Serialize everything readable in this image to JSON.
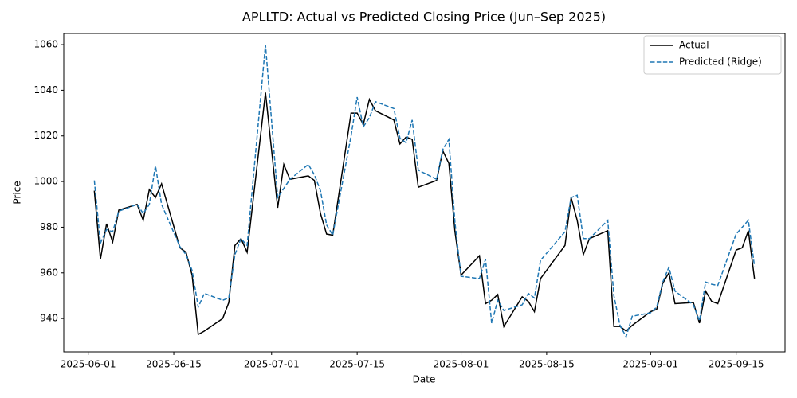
{
  "chart_data": {
    "type": "line",
    "title": "APLLTD: Actual vs Predicted Closing Price (Jun–Sep 2025)",
    "xlabel": "Date",
    "ylabel": "Price",
    "x": [
      "2025-06-02",
      "2025-06-03",
      "2025-06-04",
      "2025-06-05",
      "2025-06-06",
      "2025-06-09",
      "2025-06-10",
      "2025-06-11",
      "2025-06-12",
      "2025-06-13",
      "2025-06-16",
      "2025-06-17",
      "2025-06-18",
      "2025-06-19",
      "2025-06-20",
      "2025-06-23",
      "2025-06-24",
      "2025-06-25",
      "2025-06-26",
      "2025-06-27",
      "2025-06-30",
      "2025-07-02",
      "2025-07-03",
      "2025-07-04",
      "2025-07-07",
      "2025-07-08",
      "2025-07-09",
      "2025-07-10",
      "2025-07-11",
      "2025-07-14",
      "2025-07-15",
      "2025-07-16",
      "2025-07-17",
      "2025-07-18",
      "2025-07-21",
      "2025-07-22",
      "2025-07-23",
      "2025-07-24",
      "2025-07-25",
      "2025-07-28",
      "2025-07-29",
      "2025-07-30",
      "2025-07-31",
      "2025-08-01",
      "2025-08-04",
      "2025-08-05",
      "2025-08-06",
      "2025-08-07",
      "2025-08-08",
      "2025-08-11",
      "2025-08-12",
      "2025-08-13",
      "2025-08-14",
      "2025-08-18",
      "2025-08-19",
      "2025-08-20",
      "2025-08-21",
      "2025-08-22",
      "2025-08-25",
      "2025-08-26",
      "2025-08-27",
      "2025-08-28",
      "2025-08-29",
      "2025-09-01",
      "2025-09-02",
      "2025-09-03",
      "2025-09-04",
      "2025-09-05",
      "2025-09-08",
      "2025-09-09",
      "2025-09-10",
      "2025-09-11",
      "2025-09-12",
      "2025-09-15",
      "2025-09-16",
      "2025-09-17",
      "2025-09-18"
    ],
    "series": [
      {
        "name": "Actual",
        "color": "#000000",
        "dash": false,
        "values": [
          996,
          966,
          981.5,
          973.5,
          987.5,
          990,
          983,
          996.5,
          993,
          999,
          971,
          969,
          959,
          933,
          934.5,
          940,
          947,
          972,
          975,
          969,
          1039,
          988.5,
          1007.5,
          1001,
          1002.5,
          1000.5,
          986,
          977,
          976.5,
          1030,
          1030,
          1025,
          1036,
          1031,
          1027,
          1016.5,
          1019.5,
          1018.5,
          997.5,
          1000.5,
          1013.5,
          1008,
          978,
          959,
          967.5,
          946.5,
          948,
          950.5,
          936.5,
          949.5,
          947.5,
          943,
          957.5,
          972,
          993,
          983,
          968,
          975,
          978.5,
          936.5,
          936.5,
          934.5,
          937,
          943,
          944,
          955.5,
          960,
          946.5,
          947,
          938,
          952,
          947.5,
          946.5,
          970,
          971,
          978.5,
          957.5
        ]
      },
      {
        "name": "Predicted (Ridge)",
        "color": "#1f77b4",
        "dash": true,
        "values": [
          1000.5,
          973,
          979,
          978,
          987,
          990,
          986,
          990,
          1007,
          990,
          971.5,
          968,
          961,
          945,
          951,
          948,
          949,
          968,
          975,
          972,
          1060,
          993,
          997,
          1001,
          1007.5,
          1003,
          996,
          981,
          976.5,
          1020,
          1037,
          1024,
          1028,
          1035,
          1032,
          1019,
          1017,
          1027,
          1005,
          1001,
          1014,
          1018.5,
          982,
          958.5,
          957.5,
          966,
          938,
          948,
          943.5,
          946,
          951,
          949,
          965.5,
          978,
          993,
          994,
          975,
          975,
          983,
          950,
          937,
          932,
          941,
          942.5,
          945,
          956,
          962.5,
          952,
          946,
          939,
          956,
          955,
          954.5,
          977,
          980,
          983,
          963
        ]
      }
    ],
    "xlim": [
      "2025-05-28",
      "2025-09-23"
    ],
    "xticks": [
      "2025-06-01",
      "2025-06-15",
      "2025-07-01",
      "2025-07-15",
      "2025-08-01",
      "2025-08-15",
      "2025-09-01",
      "2025-09-15"
    ],
    "ylim": [
      925.4,
      1064.9
    ],
    "yticks": [
      940,
      960,
      980,
      1000,
      1020,
      1040,
      1060
    ],
    "legend": "upper right"
  }
}
